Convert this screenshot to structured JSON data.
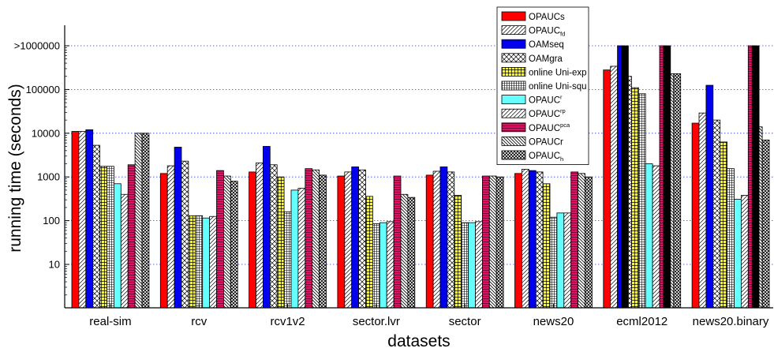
{
  "chart_data": {
    "type": "bar",
    "xlabel": "datasets",
    "ylabel": "running time (seconds)",
    "y_scale": "log",
    "ylim": [
      1,
      3000000
    ],
    "y_ticks": [
      {
        "value": 10,
        "label": "10"
      },
      {
        "value": 100,
        "label": "100"
      },
      {
        "value": 1000,
        "label": "1000"
      },
      {
        "value": 10000,
        "label": "10000"
      },
      {
        "value": 100000,
        "label": "100000"
      },
      {
        "value": 1000000,
        "label": ">1000000"
      }
    ],
    "gridlines": "horizontal dotted blue at major ticks",
    "legend_position": "top-right",
    "categories": [
      "real-sim",
      "rcv",
      "rcv1v2",
      "sector.lvr",
      "sector",
      "news20",
      "ecml2012",
      "news20.binary"
    ],
    "series": [
      {
        "name": "OPAUCs",
        "name_sub": "",
        "name_sup": "",
        "color": "#ff0000",
        "pattern": "solid",
        "values": [
          11000,
          1200,
          1300,
          1050,
          1100,
          1200,
          280000,
          17000
        ]
      },
      {
        "name": "OPAUC",
        "name_sub": "fd",
        "name_sup": "",
        "color": "#ffffff",
        "pattern": "diag-right",
        "values": [
          11000,
          1800,
          2100,
          1300,
          1350,
          1500,
          340000,
          29000
        ]
      },
      {
        "name": "OAMseq",
        "name_sub": "",
        "name_sup": "",
        "color": "#0000ee",
        "pattern": "solid",
        "values": [
          12000,
          4800,
          5000,
          1700,
          1700,
          1400,
          1000000,
          125000
        ]
      },
      {
        "name": "OAMgra",
        "name_sub": "",
        "name_sup": "",
        "color": "#ffffff",
        "pattern": "crosshatch-diag",
        "values": [
          5300,
          2300,
          1900,
          1450,
          1300,
          1300,
          200000,
          20000
        ]
      },
      {
        "name": "online Uni-exp",
        "name_sub": "",
        "name_sup": "",
        "color": "#ffff00",
        "pattern": "grid",
        "values": [
          1750,
          130,
          1000,
          360,
          380,
          700,
          110000,
          6300
        ]
      },
      {
        "name": "online Uni-squ",
        "name_sub": "",
        "name_sup": "",
        "color": "#ffffff",
        "pattern": "fine-grid",
        "values": [
          1750,
          130,
          160,
          85,
          90,
          120,
          80000,
          1550
        ]
      },
      {
        "name": "OPAUC",
        "name_sub": "",
        "name_sup": "r",
        "color": "#66ffff",
        "pattern": "solid",
        "values": [
          700,
          115,
          500,
          90,
          90,
          150,
          2000,
          310
        ]
      },
      {
        "name": "OPAUC",
        "name_sub": "",
        "name_sup": "rp",
        "color": "#ffffff",
        "pattern": "diag-right",
        "values": [
          400,
          125,
          550,
          95,
          95,
          150,
          1800,
          380
        ]
      },
      {
        "name": "OPAUC",
        "name_sub": "",
        "name_sup": "pca",
        "color": "#dd1166",
        "pattern": "horizontal",
        "values": [
          1900,
          1400,
          1550,
          1050,
          1050,
          1300,
          1000000,
          1000000
        ]
      },
      {
        "name": "OPAUCr",
        "name_sub": "",
        "name_sup": "",
        "color": "#ffffff",
        "pattern": "diag-left",
        "values": [
          10000,
          1050,
          1450,
          400,
          1050,
          1200,
          230000,
          14000
        ]
      },
      {
        "name": "OPAUC",
        "name_sub": "h",
        "name_sup": "",
        "color": "#ffffff",
        "pattern": "dense-cross",
        "values": [
          10000,
          800,
          1100,
          340,
          1000,
          1000,
          230000,
          7000
        ]
      }
    ],
    "overlays": [
      {
        "category": "ecml2012",
        "after_series_index": 2,
        "value": 1000000,
        "color": "#000000"
      },
      {
        "category": "ecml2012",
        "after_series_index": 8,
        "value": 1000000,
        "color": "#000000"
      },
      {
        "category": "news20.binary",
        "after_series_index": 8,
        "value": 1000000,
        "color": "#000000"
      }
    ]
  }
}
